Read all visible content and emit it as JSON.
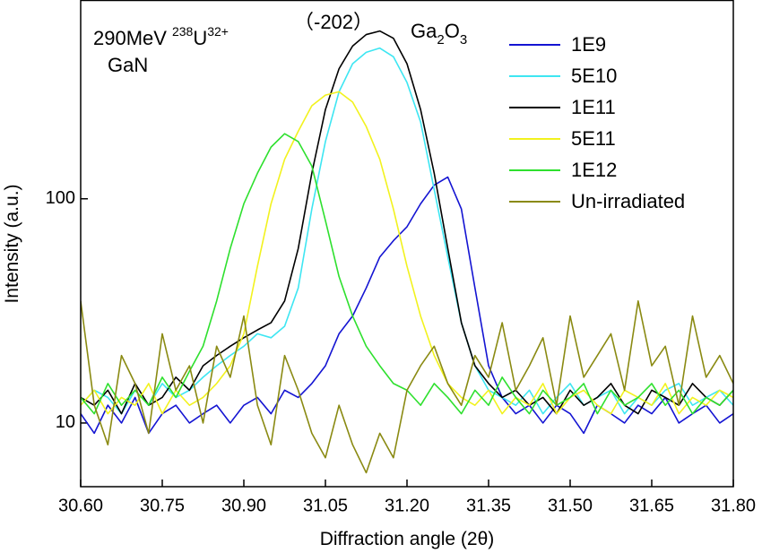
{
  "chart_data": {
    "type": "line",
    "x_label": "Diffraction angle (2θ)",
    "y_label": "Intensity (a.u.)",
    "y_scale": "log",
    "xlim": [
      30.6,
      31.8
    ],
    "ylim": [
      5.2,
      770
    ],
    "xticks": [
      {
        "value": 30.6,
        "label": "30.60"
      },
      30.75,
      {
        "value": 30.9,
        "label": "30.90"
      },
      31.05,
      {
        "value": 31.2,
        "label": "31.20"
      },
      31.35,
      {
        "value": 31.5,
        "label": "31.50"
      },
      31.65,
      {
        "value": 31.8,
        "label": "31.80"
      }
    ],
    "yticks": [
      10,
      100
    ],
    "legend": "upper-right",
    "annotations": {
      "energy": "290MeV",
      "mass": "238",
      "element": "U",
      "charge": "32+",
      "sample": "GaN",
      "peak": "（-202）",
      "phase_ga": "Ga",
      "phase_sub1": "2",
      "phase_o": "O",
      "phase_sub2": "3"
    },
    "x": [
      30.6,
      30.625,
      30.65,
      30.675,
      30.7,
      30.725,
      30.75,
      30.775,
      30.8,
      30.825,
      30.85,
      30.875,
      30.9,
      30.925,
      30.95,
      30.975,
      31.0,
      31.025,
      31.05,
      31.075,
      31.1,
      31.125,
      31.15,
      31.175,
      31.2,
      31.225,
      31.25,
      31.275,
      31.3,
      31.325,
      31.35,
      31.375,
      31.4,
      31.425,
      31.45,
      31.475,
      31.5,
      31.525,
      31.55,
      31.575,
      31.6,
      31.625,
      31.65,
      31.675,
      31.7,
      31.725,
      31.75,
      31.775,
      31.8
    ],
    "series": [
      {
        "name": "1E9",
        "color": "#1414d2",
        "values": [
          11,
          9,
          12,
          10,
          13,
          9,
          11,
          12,
          10,
          11,
          12,
          10,
          12,
          13,
          11,
          14,
          13,
          15,
          18,
          25,
          30,
          40,
          55,
          65,
          75,
          95,
          115,
          125,
          90,
          40,
          18,
          13,
          11,
          12,
          10,
          12,
          11,
          9,
          12,
          11,
          10,
          12,
          11,
          13,
          10,
          11,
          12,
          10,
          11
        ]
      },
      {
        "name": "5E10",
        "color": "#3ee6f2",
        "values": [
          12,
          14,
          13,
          11,
          14,
          12,
          15,
          13,
          14,
          16,
          18,
          20,
          22,
          25,
          24,
          27,
          40,
          90,
          180,
          300,
          400,
          450,
          470,
          430,
          330,
          220,
          110,
          55,
          28,
          18,
          14,
          13,
          12,
          14,
          11,
          13,
          15,
          12,
          13,
          14,
          11,
          13,
          12,
          14,
          15,
          12,
          13,
          14,
          12
        ]
      },
      {
        "name": "1E11",
        "color": "#000000",
        "values": [
          13,
          12,
          14,
          11,
          15,
          12,
          13,
          16,
          14,
          18,
          20,
          22,
          24,
          26,
          28,
          35,
          60,
          130,
          250,
          380,
          480,
          540,
          560,
          520,
          400,
          250,
          130,
          60,
          28,
          18,
          15,
          13,
          14,
          12,
          13,
          11,
          14,
          12,
          13,
          15,
          12,
          11,
          14,
          13,
          12,
          15,
          13,
          12,
          14
        ]
      },
      {
        "name": "5E11",
        "color": "#f2f21e",
        "values": [
          12,
          14,
          11,
          13,
          12,
          15,
          11,
          14,
          12,
          13,
          15,
          18,
          25,
          50,
          95,
          150,
          200,
          260,
          290,
          300,
          270,
          210,
          150,
          90,
          50,
          30,
          20,
          15,
          13,
          12,
          14,
          11,
          13,
          12,
          15,
          11,
          13,
          14,
          12,
          11,
          14,
          13,
          12,
          15,
          11,
          13,
          12,
          14,
          13
        ]
      },
      {
        "name": "1E12",
        "color": "#2ee02e",
        "values": [
          13,
          11,
          15,
          12,
          14,
          12,
          16,
          13,
          17,
          22,
          35,
          60,
          95,
          130,
          170,
          195,
          180,
          140,
          80,
          45,
          30,
          22,
          18,
          15,
          14,
          12,
          15,
          13,
          11,
          14,
          12,
          16,
          13,
          11,
          14,
          12,
          13,
          15,
          11,
          14,
          12,
          13,
          15,
          12,
          14,
          11,
          13,
          12,
          14
        ]
      },
      {
        "name": "Un-irradiated",
        "color": "#8a8a12",
        "values": [
          35,
          12,
          8,
          20,
          15,
          9,
          25,
          14,
          18,
          10,
          22,
          16,
          30,
          12,
          8,
          20,
          14,
          9,
          7,
          12,
          8,
          6,
          9,
          7,
          14,
          18,
          22,
          15,
          12,
          20,
          16,
          28,
          14,
          18,
          24,
          12,
          30,
          16,
          20,
          25,
          14,
          35,
          18,
          22,
          12,
          30,
          16,
          20,
          15
        ]
      }
    ]
  }
}
